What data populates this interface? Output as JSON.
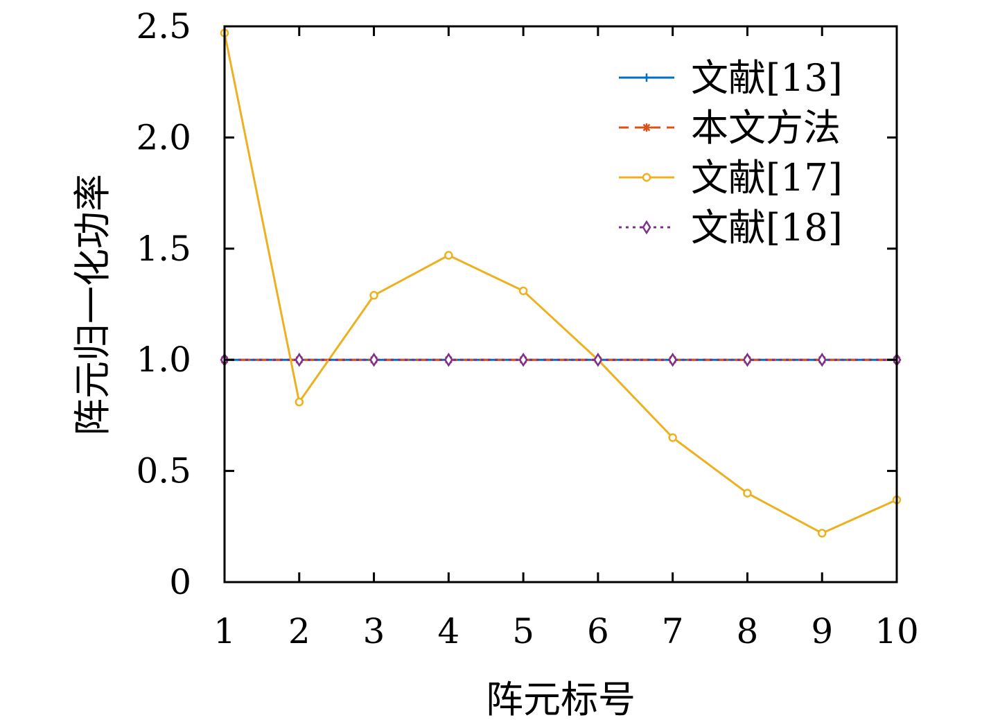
{
  "chart_data": {
    "type": "line",
    "title": "",
    "xlabel": "阵元标号",
    "ylabel": "阵元归一化功率",
    "x": [
      1,
      2,
      3,
      4,
      5,
      6,
      7,
      8,
      9,
      10
    ],
    "xlim": [
      1,
      10
    ],
    "ylim": [
      0,
      2.5
    ],
    "x_ticks": [
      "1",
      "2",
      "3",
      "4",
      "5",
      "6",
      "7",
      "8",
      "9",
      "10"
    ],
    "y_ticks": [
      {
        "value": 0,
        "label": "0"
      },
      {
        "value": 0.5,
        "label": "0.5"
      },
      {
        "value": 1.0,
        "label": "1.0"
      },
      {
        "value": 1.5,
        "label": "1.5"
      },
      {
        "value": 2.0,
        "label": "2.0"
      },
      {
        "value": 2.5,
        "label": "2.5"
      }
    ],
    "grid": false,
    "legend_position": "top-right",
    "series": [
      {
        "name": "文献[13]",
        "color": "#0072BD",
        "marker": "plus",
        "dash": "solid",
        "values": [
          1,
          1,
          1,
          1,
          1,
          1,
          1,
          1,
          1,
          1
        ]
      },
      {
        "name": "本文方法",
        "color": "#D95319",
        "marker": "asterisk",
        "dash": "dashed",
        "values": [
          1,
          1,
          1,
          1,
          1,
          1,
          1,
          1,
          1,
          1
        ]
      },
      {
        "name": "文献[17]",
        "color": "#EDB120",
        "marker": "circle",
        "dash": "solid",
        "values": [
          2.47,
          0.81,
          1.29,
          1.47,
          1.31,
          1.0,
          0.65,
          0.4,
          0.22,
          0.37
        ]
      },
      {
        "name": "文献[18]",
        "color": "#7E2F8E",
        "marker": "diamond",
        "dash": "dotted",
        "values": [
          1,
          1,
          1,
          1,
          1,
          1,
          1,
          1,
          1,
          1
        ]
      }
    ]
  }
}
